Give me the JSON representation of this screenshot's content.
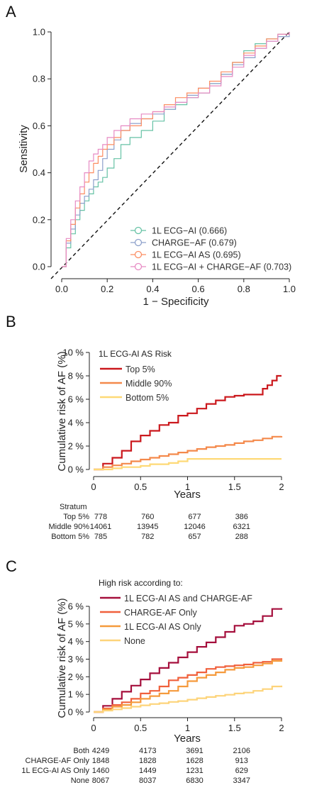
{
  "chart_data": [
    {
      "panel": "A",
      "type": "line",
      "title": "",
      "xlabel": "1 − Specificity",
      "ylabel": "Sensitivity",
      "xlim": [
        0,
        1
      ],
      "ylim": [
        0,
        1
      ],
      "xticks": [
        "0.0",
        "0.2",
        "0.4",
        "0.6",
        "0.8",
        "1.0"
      ],
      "yticks": [
        "0.0",
        "0.2",
        "0.4",
        "0.6",
        "0.8",
        "1.0"
      ],
      "legend_placement": "bottom-right",
      "reference_line": "diagonal dashed",
      "series": [
        {
          "name": "1L ECG−AI (0.666)",
          "color": "#66c2a5",
          "x": [
            0,
            0.02,
            0.04,
            0.06,
            0.08,
            0.1,
            0.12,
            0.14,
            0.16,
            0.18,
            0.2,
            0.23,
            0.26,
            0.3,
            0.35,
            0.4,
            0.45,
            0.5,
            0.55,
            0.6,
            0.65,
            0.7,
            0.75,
            0.8,
            0.85,
            0.9,
            0.95,
            1.0
          ],
          "y": [
            0,
            0.08,
            0.14,
            0.2,
            0.24,
            0.28,
            0.31,
            0.34,
            0.36,
            0.38,
            0.42,
            0.46,
            0.52,
            0.55,
            0.58,
            0.62,
            0.67,
            0.69,
            0.72,
            0.74,
            0.78,
            0.82,
            0.87,
            0.92,
            0.95,
            0.97,
            0.99,
            1.0
          ]
        },
        {
          "name": "CHARGE−AF (0.679)",
          "color": "#8da0cb",
          "x": [
            0,
            0.02,
            0.04,
            0.06,
            0.08,
            0.1,
            0.12,
            0.14,
            0.16,
            0.18,
            0.2,
            0.23,
            0.26,
            0.3,
            0.35,
            0.4,
            0.45,
            0.5,
            0.55,
            0.6,
            0.65,
            0.7,
            0.75,
            0.8,
            0.85,
            0.9,
            0.95,
            1.0
          ],
          "y": [
            0,
            0.1,
            0.16,
            0.22,
            0.27,
            0.3,
            0.33,
            0.37,
            0.41,
            0.46,
            0.5,
            0.54,
            0.58,
            0.61,
            0.63,
            0.65,
            0.67,
            0.7,
            0.73,
            0.76,
            0.78,
            0.82,
            0.86,
            0.89,
            0.93,
            0.96,
            0.98,
            1.0
          ]
        },
        {
          "name": "1L ECG−AI AS (0.695)",
          "color": "#fc8d62",
          "x": [
            0,
            0.02,
            0.04,
            0.06,
            0.08,
            0.1,
            0.12,
            0.14,
            0.16,
            0.18,
            0.2,
            0.23,
            0.26,
            0.3,
            0.35,
            0.4,
            0.45,
            0.5,
            0.55,
            0.6,
            0.65,
            0.7,
            0.75,
            0.8,
            0.85,
            0.9,
            0.95,
            1.0
          ],
          "y": [
            0,
            0.11,
            0.18,
            0.25,
            0.31,
            0.36,
            0.4,
            0.44,
            0.47,
            0.5,
            0.52,
            0.55,
            0.58,
            0.6,
            0.63,
            0.66,
            0.69,
            0.72,
            0.74,
            0.76,
            0.79,
            0.83,
            0.87,
            0.91,
            0.94,
            0.97,
            0.99,
            1.0
          ]
        },
        {
          "name": "1L ECG−AI + CHARGE−AF (0.703)",
          "color": "#e78ac3",
          "x": [
            0,
            0.02,
            0.04,
            0.06,
            0.08,
            0.1,
            0.12,
            0.14,
            0.16,
            0.18,
            0.2,
            0.23,
            0.26,
            0.3,
            0.35,
            0.4,
            0.45,
            0.5,
            0.55,
            0.6,
            0.65,
            0.7,
            0.75,
            0.8,
            0.85,
            0.9,
            0.95,
            1.0
          ],
          "y": [
            0,
            0.12,
            0.2,
            0.28,
            0.34,
            0.4,
            0.45,
            0.48,
            0.5,
            0.52,
            0.55,
            0.58,
            0.6,
            0.63,
            0.65,
            0.66,
            0.68,
            0.7,
            0.72,
            0.74,
            0.77,
            0.81,
            0.85,
            0.9,
            0.93,
            0.96,
            0.99,
            1.0
          ]
        }
      ]
    },
    {
      "panel": "B",
      "type": "line",
      "title": "",
      "xlabel": "Years",
      "ylabel": "Cumulative risk of AF (%)",
      "xlim": [
        0,
        2
      ],
      "ylim": [
        0,
        10
      ],
      "xticks": [
        "0",
        "0.5",
        "1",
        "1.5",
        "2"
      ],
      "yticks": [
        "0 %",
        "2 %",
        "4 %",
        "6 %",
        "8 %",
        "10 %"
      ],
      "legend_title": "1L ECG-AI AS Risk",
      "legend_placement": "top-left",
      "series": [
        {
          "name": "Top 5%",
          "color": "#cb181d",
          "x": [
            0,
            0.1,
            0.2,
            0.3,
            0.4,
            0.5,
            0.6,
            0.7,
            0.8,
            0.9,
            1.0,
            1.1,
            1.2,
            1.3,
            1.4,
            1.5,
            1.6,
            1.7,
            1.8,
            1.85,
            1.9,
            1.95,
            2.0
          ],
          "y": [
            0,
            0.5,
            1.0,
            1.6,
            2.4,
            2.9,
            3.3,
            3.8,
            4.0,
            4.6,
            4.8,
            5.2,
            5.6,
            5.9,
            6.2,
            6.3,
            6.4,
            6.4,
            6.9,
            7.2,
            7.6,
            8.0,
            8.0
          ]
        },
        {
          "name": "Middle 90%",
          "color": "#f4894b",
          "x": [
            0,
            0.1,
            0.2,
            0.3,
            0.4,
            0.5,
            0.6,
            0.7,
            0.8,
            0.9,
            1.0,
            1.1,
            1.2,
            1.3,
            1.4,
            1.5,
            1.6,
            1.7,
            1.8,
            1.9,
            2.0
          ],
          "y": [
            0,
            0.2,
            0.35,
            0.5,
            0.7,
            0.85,
            1.0,
            1.15,
            1.3,
            1.45,
            1.6,
            1.75,
            1.9,
            2.0,
            2.1,
            2.25,
            2.4,
            2.5,
            2.65,
            2.8,
            2.85
          ]
        },
        {
          "name": "Bottom 5%",
          "color": "#fed976",
          "x": [
            0,
            0.2,
            0.3,
            0.5,
            0.6,
            0.8,
            0.9,
            1.0,
            1.5,
            2.0
          ],
          "y": [
            0,
            0.1,
            0.2,
            0.3,
            0.45,
            0.55,
            0.7,
            0.9,
            0.9,
            0.9
          ]
        }
      ],
      "risk_table": {
        "title": "Stratum",
        "rows": [
          {
            "label": "Top 5%",
            "values": [
              "778",
              "760",
              "677",
              "386"
            ]
          },
          {
            "label": "Middle 90%",
            "values": [
              "14061",
              "13945",
              "12046",
              "6321"
            ]
          },
          {
            "label": "Bottom 5%",
            "values": [
              "785",
              "782",
              "657",
              "288"
            ]
          }
        ]
      }
    },
    {
      "panel": "C",
      "type": "line",
      "title": "",
      "xlabel": "Years",
      "ylabel": "Cumulative risk of AF (%)",
      "xlim": [
        0,
        2
      ],
      "ylim": [
        0,
        6
      ],
      "xticks": [
        "0",
        "0.5",
        "1",
        "1.5",
        "2"
      ],
      "yticks": [
        "0 %",
        "1 %",
        "2 %",
        "3 %",
        "4 %",
        "5 %",
        "6 %"
      ],
      "legend_title": "High risk according to:",
      "legend_placement": "top-left",
      "series": [
        {
          "name": "1L ECG-AI AS and CHARGE-AF",
          "color": "#a50f3c",
          "x": [
            0,
            0.1,
            0.2,
            0.3,
            0.4,
            0.5,
            0.6,
            0.7,
            0.8,
            0.9,
            1.0,
            1.1,
            1.2,
            1.3,
            1.4,
            1.5,
            1.6,
            1.7,
            1.8,
            1.9,
            2.0
          ],
          "y": [
            0,
            0.35,
            0.75,
            1.15,
            1.5,
            1.85,
            2.2,
            2.5,
            2.8,
            3.1,
            3.4,
            3.7,
            3.95,
            4.25,
            4.55,
            4.9,
            5.0,
            5.15,
            5.45,
            5.85,
            5.9
          ]
        },
        {
          "name": "CHARGE-AF Only",
          "color": "#f0603c",
          "x": [
            0,
            0.1,
            0.2,
            0.3,
            0.4,
            0.5,
            0.6,
            0.7,
            0.8,
            0.9,
            1.0,
            1.1,
            1.2,
            1.3,
            1.4,
            1.5,
            1.6,
            1.7,
            1.8,
            1.9,
            2.0
          ],
          "y": [
            0,
            0.2,
            0.4,
            0.55,
            0.75,
            1.05,
            1.2,
            1.45,
            1.8,
            1.95,
            2.1,
            2.25,
            2.45,
            2.55,
            2.6,
            2.65,
            2.7,
            2.8,
            2.85,
            3.0,
            3.05
          ]
        },
        {
          "name": "1L ECG-AI AS Only",
          "color": "#f59a3c",
          "x": [
            0,
            0.1,
            0.2,
            0.3,
            0.4,
            0.5,
            0.6,
            0.7,
            0.8,
            0.9,
            1.0,
            1.1,
            1.2,
            1.3,
            1.4,
            1.5,
            1.6,
            1.7,
            1.8,
            1.9,
            2.0
          ],
          "y": [
            0,
            0.15,
            0.3,
            0.4,
            0.55,
            0.75,
            0.9,
            1.05,
            1.2,
            1.45,
            1.75,
            1.95,
            2.1,
            2.25,
            2.4,
            2.5,
            2.55,
            2.65,
            2.75,
            2.9,
            2.95
          ]
        },
        {
          "name": "None",
          "color": "#fdd47a",
          "x": [
            0,
            0.1,
            0.2,
            0.3,
            0.4,
            0.5,
            0.6,
            0.7,
            0.8,
            0.9,
            1.0,
            1.1,
            1.2,
            1.3,
            1.4,
            1.5,
            1.6,
            1.7,
            1.8,
            1.9,
            2.0
          ],
          "y": [
            0,
            0.08,
            0.15,
            0.22,
            0.3,
            0.38,
            0.45,
            0.5,
            0.57,
            0.62,
            0.7,
            0.78,
            0.85,
            0.92,
            0.98,
            1.05,
            1.1,
            1.2,
            1.3,
            1.45,
            1.5
          ]
        }
      ],
      "risk_table": {
        "title": "",
        "rows": [
          {
            "label": "Both",
            "values": [
              "4249",
              "4173",
              "3691",
              "2106"
            ]
          },
          {
            "label": "CHARGE-AF Only",
            "values": [
              "1848",
              "1828",
              "1628",
              "913"
            ]
          },
          {
            "label": "1L ECG-AI AS Only",
            "values": [
              "1460",
              "1449",
              "1231",
              "629"
            ]
          },
          {
            "label": "None",
            "values": [
              "8067",
              "8037",
              "6830",
              "3347"
            ]
          }
        ]
      }
    }
  ]
}
